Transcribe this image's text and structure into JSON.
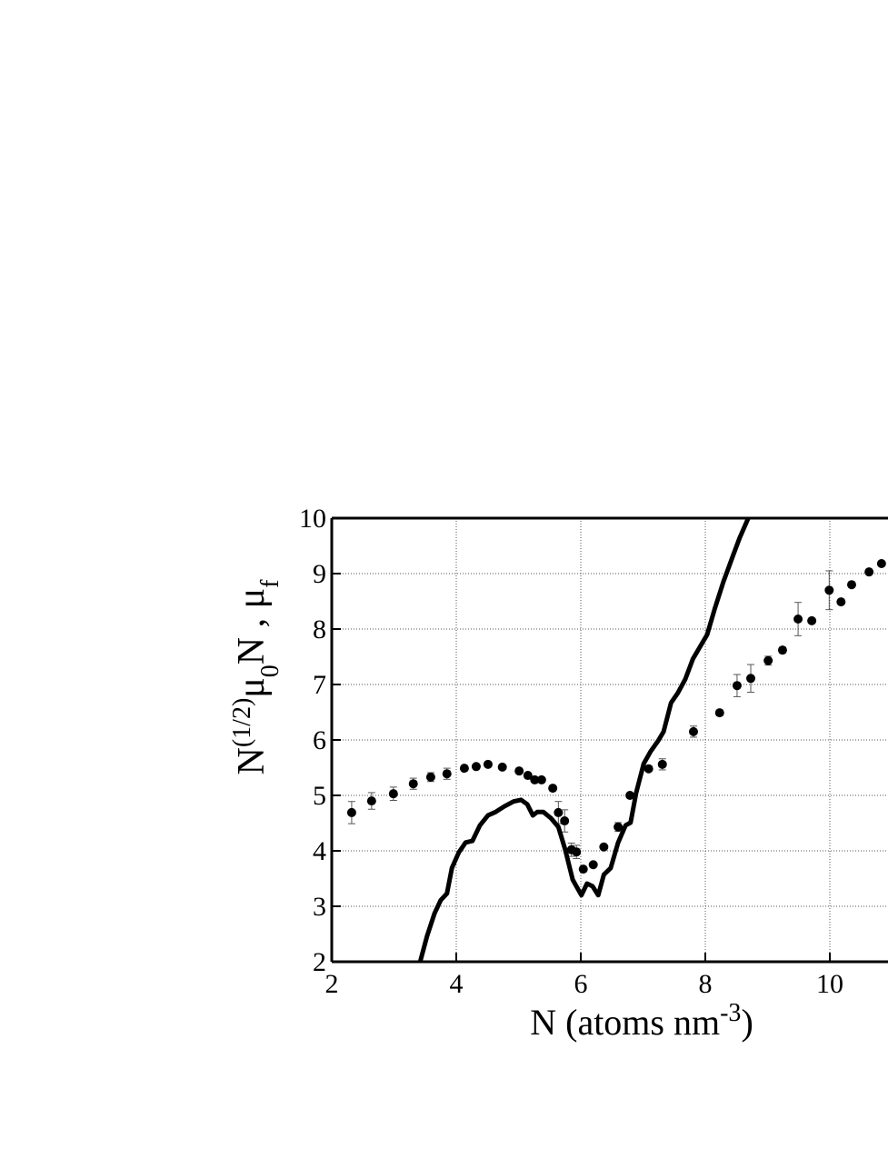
{
  "chart_data": {
    "type": "scatter",
    "xlabel_parts": [
      {
        "text": "N (atoms nm"
      },
      {
        "text": "-3",
        "shift": "super"
      },
      {
        "text": ")"
      }
    ],
    "ylabel_parts": [
      {
        "text": "N"
      },
      {
        "text": "(1/2)",
        "shift": "super"
      },
      {
        "text": "μ"
      },
      {
        "text": "0",
        "shift": "sub"
      },
      {
        "text": "N , μ"
      },
      {
        "text": "f",
        "shift": "sub"
      }
    ],
    "xlim": [
      2,
      10.9
    ],
    "ylim": [
      2,
      10
    ],
    "xticks": [
      2,
      4,
      6,
      8,
      10
    ],
    "yticks": [
      2,
      3,
      4,
      5,
      6,
      7,
      8,
      9,
      10
    ],
    "grid": true,
    "series": [
      {
        "type": "scatter",
        "color": "#000000",
        "x": [
          2.32,
          2.64,
          2.99,
          3.31,
          3.59,
          3.85,
          4.13,
          4.32,
          4.51,
          4.74,
          5.01,
          5.15,
          5.26,
          5.37,
          5.55,
          5.64,
          5.74,
          5.85,
          5.93,
          6.04,
          6.2,
          6.37,
          6.6,
          6.79,
          7.09,
          7.31,
          7.81,
          8.23,
          8.51,
          8.73,
          9.01,
          9.24,
          9.49,
          9.71,
          9.99,
          10.18,
          10.35,
          10.63,
          10.83
        ],
        "values": [
          4.69,
          4.9,
          5.03,
          5.21,
          5.33,
          5.39,
          5.49,
          5.52,
          5.56,
          5.51,
          5.44,
          5.36,
          5.28,
          5.28,
          5.13,
          4.69,
          4.54,
          4.02,
          3.98,
          3.67,
          3.75,
          4.07,
          4.43,
          5.0,
          5.48,
          5.56,
          6.15,
          6.49,
          6.98,
          7.11,
          7.43,
          7.62,
          8.18,
          8.15,
          8.7,
          8.49,
          8.8,
          9.03,
          9.18
        ],
        "errors": [
          0.2,
          0.15,
          0.12,
          0.1,
          0.08,
          0.1,
          null,
          null,
          null,
          null,
          null,
          null,
          null,
          null,
          null,
          0.2,
          0.2,
          0.12,
          0.12,
          null,
          null,
          null,
          0.08,
          null,
          null,
          0.1,
          0.1,
          0.05,
          0.2,
          0.25,
          0.08,
          0.05,
          0.3,
          null,
          0.35,
          null,
          null,
          null,
          null
        ]
      },
      {
        "type": "line",
        "color": "#000000",
        "x": [
          3.42,
          3.53,
          3.65,
          3.75,
          3.85,
          3.93,
          4.04,
          4.15,
          4.26,
          4.38,
          4.51,
          4.63,
          4.77,
          4.92,
          5.04,
          5.14,
          5.23,
          5.3,
          5.4,
          5.52,
          5.64,
          5.75,
          5.87,
          6.01,
          6.1,
          6.19,
          6.28,
          6.37,
          6.48,
          6.6,
          6.72,
          6.8,
          6.89,
          7.01,
          7.12,
          7.24,
          7.33,
          7.45,
          7.56,
          7.68,
          7.8,
          7.91,
          8.03,
          8.15,
          8.29,
          8.44,
          8.55,
          8.69
        ],
        "values": [
          2.0,
          2.46,
          2.87,
          3.11,
          3.23,
          3.69,
          3.97,
          4.15,
          4.18,
          4.46,
          4.64,
          4.7,
          4.8,
          4.89,
          4.92,
          4.84,
          4.64,
          4.7,
          4.7,
          4.59,
          4.43,
          4.02,
          3.48,
          3.2,
          3.41,
          3.36,
          3.2,
          3.57,
          3.69,
          4.15,
          4.46,
          4.51,
          5.05,
          5.57,
          5.79,
          5.98,
          6.15,
          6.67,
          6.85,
          7.1,
          7.46,
          7.67,
          7.9,
          8.36,
          8.85,
          9.31,
          9.64,
          10.0
        ]
      }
    ]
  }
}
